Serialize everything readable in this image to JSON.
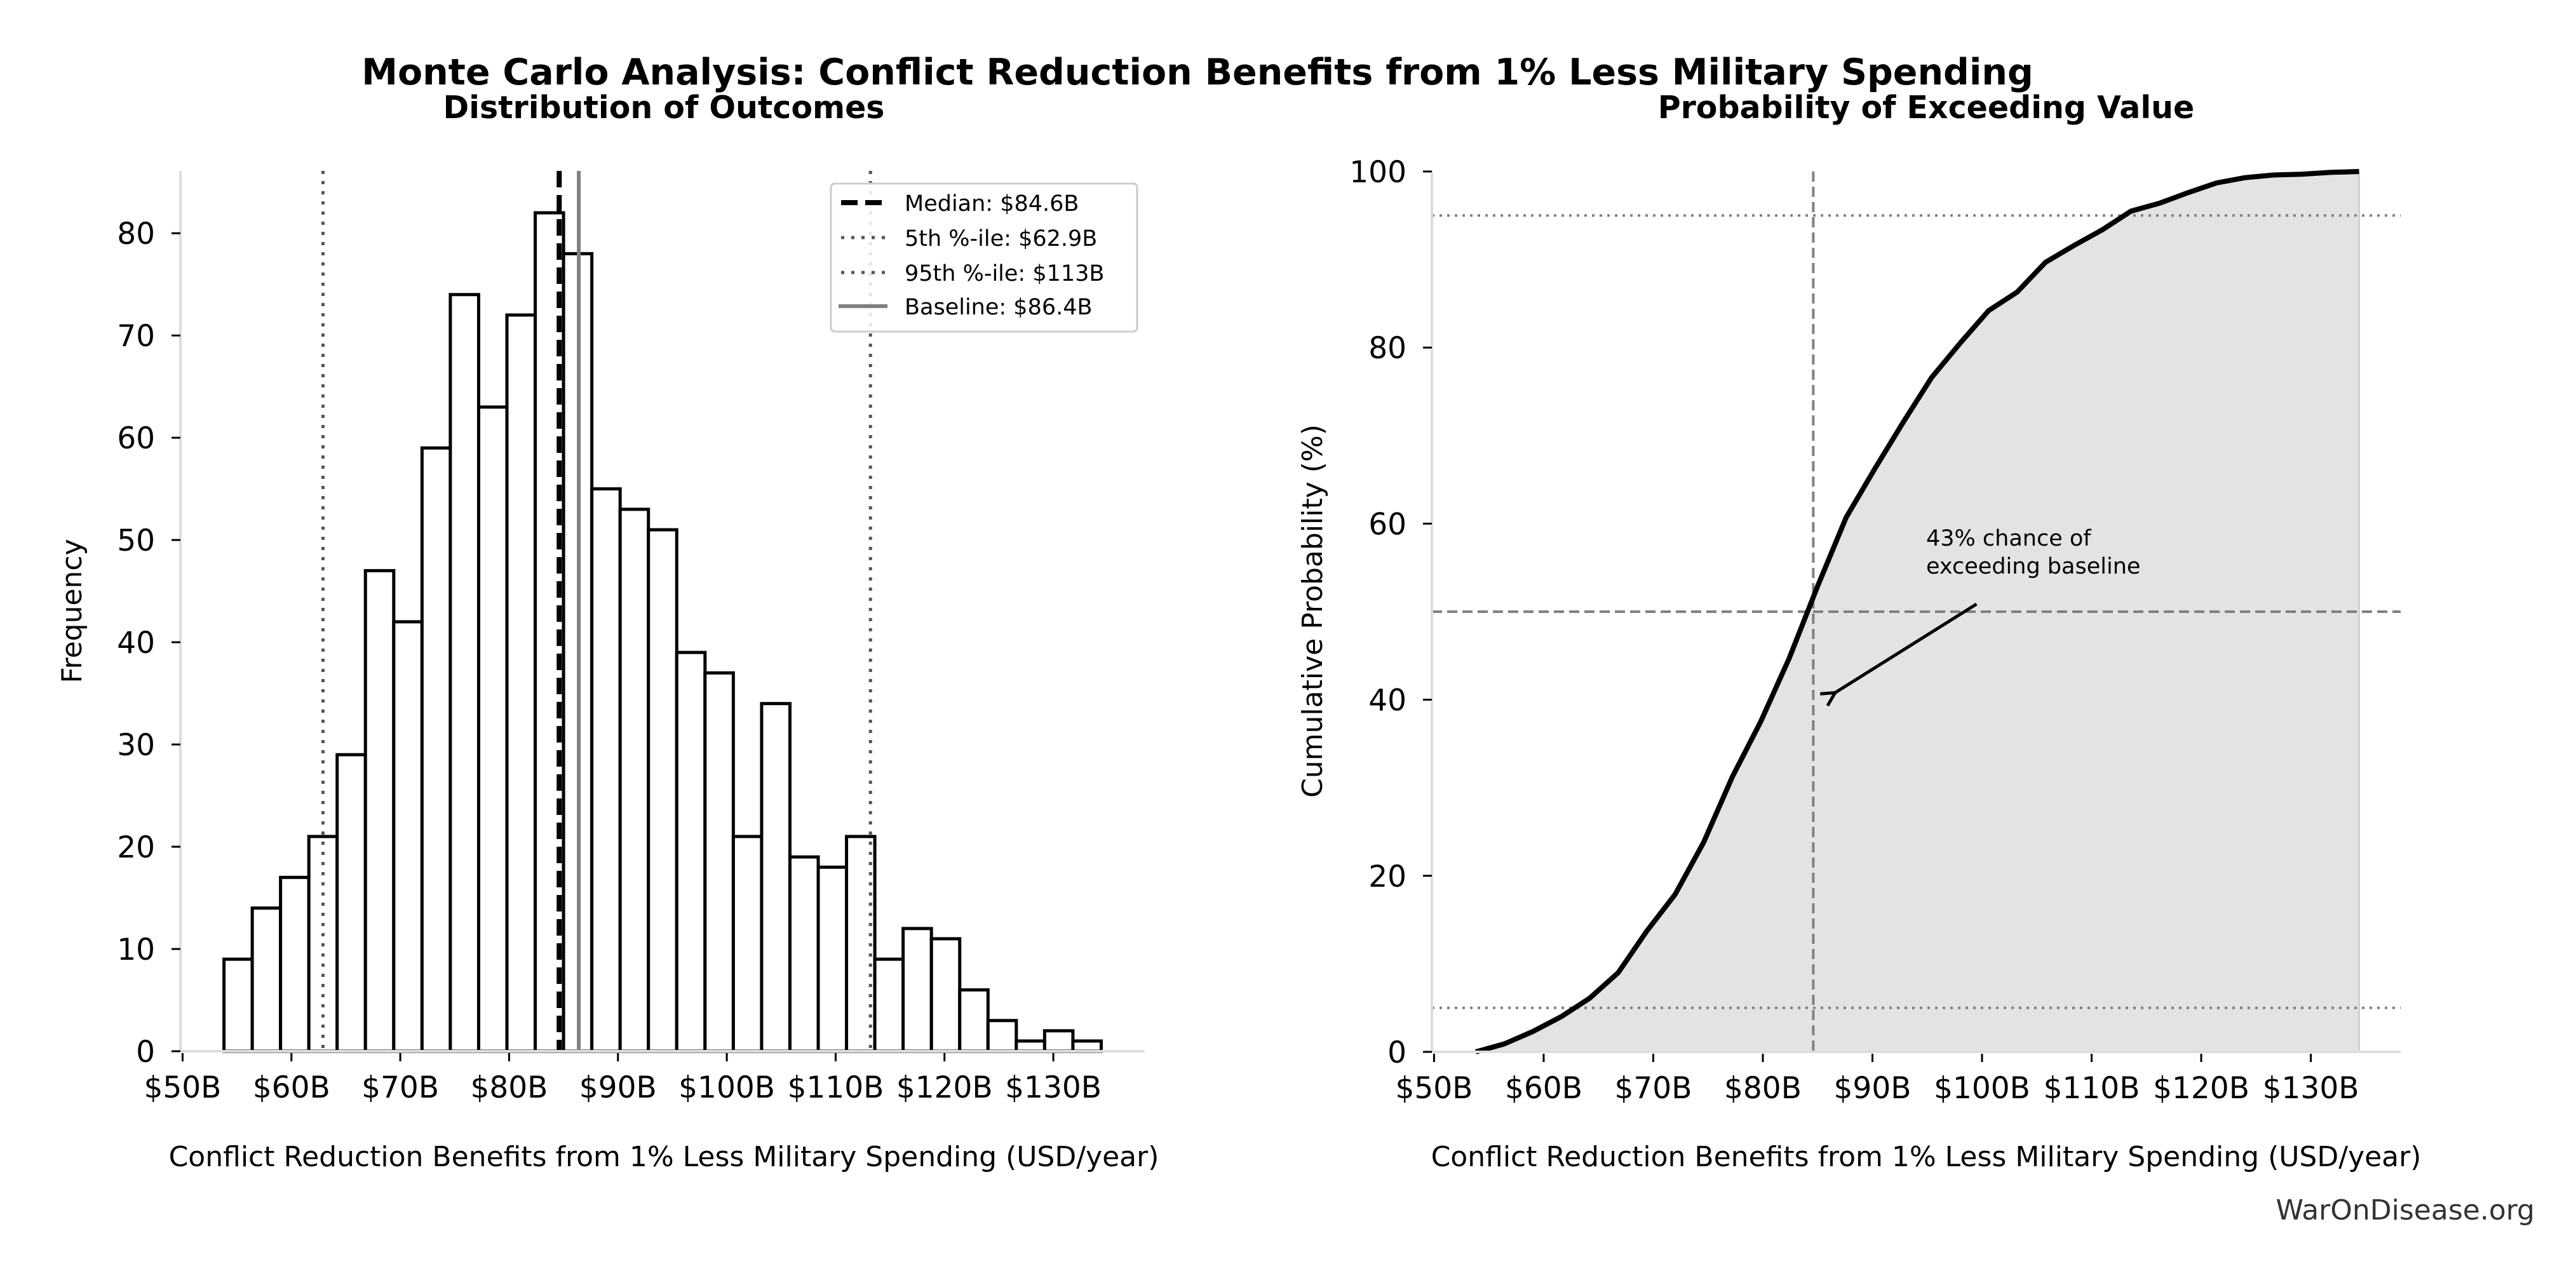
{
  "figure": {
    "suptitle": "Monte Carlo Analysis: Conflict Reduction Benefits from 1% Less Military Spending",
    "watermark": "WarOnDisease.org"
  },
  "colors": {
    "bar_edge": "#000000",
    "bar_fill": "#ffffff",
    "median": "#000000",
    "percentile": "#555555",
    "baseline": "#808080",
    "cdf_line": "#000000",
    "cdf_fill": "#e3e3e3",
    "ref_line": "#808080",
    "spine": "#dddddd"
  },
  "chart_data": [
    {
      "type": "bar",
      "subtype": "histogram",
      "title": "Distribution of Outcomes",
      "xlabel": "Conflict Reduction Benefits from 1% Less Military Spending (USD/year)",
      "ylabel": "Frequency",
      "xlim": [
        49.8,
        138.4
      ],
      "ylim": [
        0,
        86.1
      ],
      "x_unit": "billion USD",
      "xticks": [
        50,
        60,
        70,
        80,
        90,
        100,
        110,
        120,
        130
      ],
      "xtick_labels": [
        "$50B",
        "$60B",
        "$70B",
        "$80B",
        "$90B",
        "$100B",
        "$110B",
        "$120B",
        "$130B"
      ],
      "yticks": [
        0,
        10,
        20,
        30,
        40,
        50,
        60,
        70,
        80
      ],
      "ytick_labels": [
        "0",
        "10",
        "20",
        "30",
        "40",
        "50",
        "60",
        "70",
        "80"
      ],
      "grid": false,
      "bin_start": 53.8,
      "bin_width": 2.6,
      "values": [
        9,
        14,
        17,
        21,
        29,
        47,
        42,
        59,
        74,
        63,
        72,
        82,
        78,
        55,
        53,
        51,
        39,
        37,
        21,
        34,
        19,
        18,
        21,
        9,
        12,
        11,
        6,
        3,
        1,
        2,
        1
      ],
      "reference_lines": [
        {
          "name": "median",
          "label": "Median: $84.6B",
          "x": 84.6,
          "style": "dashed"
        },
        {
          "name": "p5",
          "label": "5th %-ile: $62.9B",
          "x": 62.9,
          "style": "dotted"
        },
        {
          "name": "p95",
          "label": "95th %-ile: $113B",
          "x": 113.2,
          "style": "dotted"
        },
        {
          "name": "baseline",
          "label": "Baseline: $86.4B",
          "x": 86.4,
          "style": "solid"
        }
      ],
      "legend": {
        "placement": "top-right",
        "entries": [
          "Median: $84.6B",
          "5th %-ile: $62.9B",
          "95th %-ile: $113B",
          "Baseline: $86.4B"
        ]
      }
    },
    {
      "type": "area",
      "subtype": "cumulative-distribution",
      "title": "Probability of Exceeding Value",
      "xlabel": "Conflict Reduction Benefits from 1% Less Military Spending (USD/year)",
      "ylabel": "Cumulative Probability (%)",
      "xlim": [
        49.8,
        138.2
      ],
      "ylim": [
        0,
        100
      ],
      "xticks": [
        50,
        60,
        70,
        80,
        90,
        100,
        110,
        120,
        130
      ],
      "xtick_labels": [
        "$50B",
        "$60B",
        "$70B",
        "$80B",
        "$90B",
        "$100B",
        "$110B",
        "$120B",
        "$130B"
      ],
      "yticks": [
        0,
        20,
        40,
        60,
        80,
        100
      ],
      "ytick_labels": [
        "0",
        "20",
        "40",
        "60",
        "80",
        "100"
      ],
      "grid": false,
      "x": [
        53.8,
        56.4,
        59.0,
        61.6,
        64.2,
        66.8,
        69.4,
        72.0,
        74.6,
        77.2,
        79.8,
        82.4,
        85.0,
        87.6,
        90.2,
        92.8,
        95.4,
        98.0,
        100.6,
        103.2,
        105.8,
        108.4,
        111.0,
        113.6,
        116.2,
        118.8,
        121.4,
        124.0,
        126.6,
        129.2,
        131.8,
        134.4
      ],
      "y": [
        0,
        0.9,
        2.3,
        4.0,
        6.1,
        9.0,
        13.7,
        17.9,
        23.8,
        31.2,
        37.5,
        44.7,
        52.9,
        60.7,
        66.2,
        71.5,
        76.6,
        80.5,
        84.2,
        86.3,
        89.7,
        91.6,
        93.4,
        95.5,
        96.4,
        97.6,
        98.7,
        99.3,
        99.6,
        99.7,
        99.9,
        100
      ],
      "reference_lines": [
        {
          "name": "median-vertical",
          "axis": "x",
          "value": 84.6,
          "style": "dashed"
        },
        {
          "name": "fifty-percent",
          "axis": "y",
          "value": 50,
          "style": "dashed"
        },
        {
          "name": "p5-horizontal",
          "axis": "y",
          "value": 5,
          "style": "dotted"
        },
        {
          "name": "p95-horizontal",
          "axis": "y",
          "value": 95,
          "style": "dotted"
        }
      ],
      "annotation": {
        "lines": [
          "43% chance of",
          "exceeding baseline"
        ],
        "text_at": [
          94.9,
          57.5
        ],
        "arrow_from": [
          99.5,
          50.0
        ],
        "arrow_to": [
          86.6,
          40.8
        ]
      }
    }
  ]
}
